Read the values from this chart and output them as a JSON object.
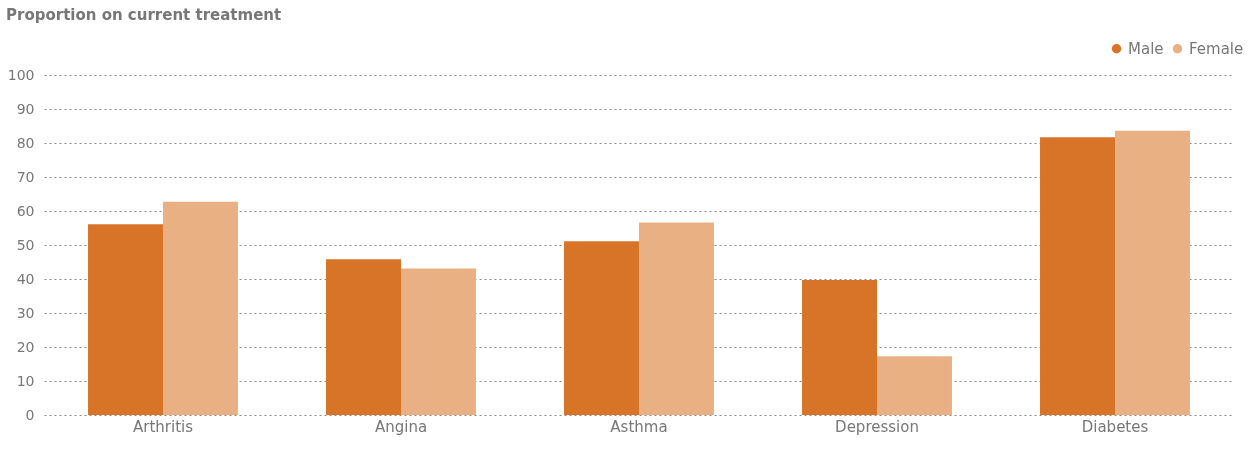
{
  "chart_data": {
    "type": "bar",
    "title": "Proportion on current treatment",
    "categories": [
      "Arthritis",
      "Angina",
      "Asthma",
      "Depression",
      "Diabetes"
    ],
    "series": [
      {
        "name": "Male",
        "color": "#d87428",
        "values": [
          56.1,
          45.8,
          51.1,
          39.7,
          81.7
        ]
      },
      {
        "name": "Female",
        "color": "#e9b183",
        "values": [
          62.7,
          43.1,
          56.6,
          17.3,
          83.6
        ]
      }
    ],
    "ylim": [
      0,
      100
    ],
    "yticks": [
      0,
      10,
      20,
      30,
      40,
      50,
      60,
      70,
      80,
      90,
      100
    ],
    "grid": "y",
    "legend": "top right"
  }
}
